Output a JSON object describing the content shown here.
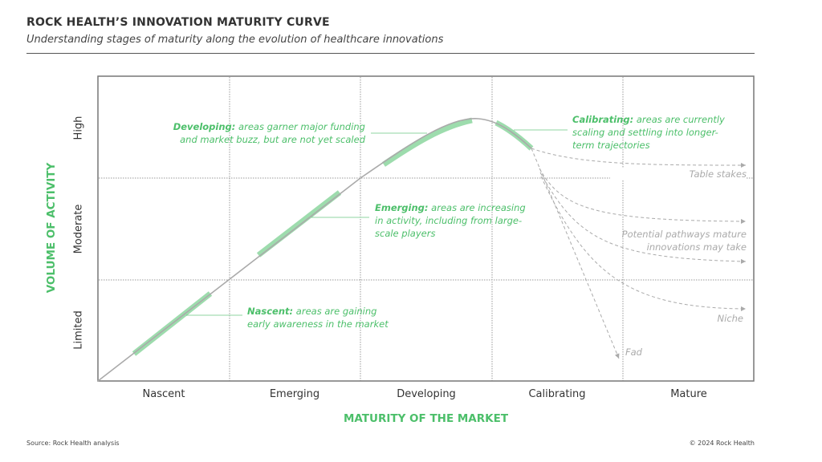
{
  "title": "ROCK HEALTH’S INNOVATION MATURITY CURVE",
  "subtitle": "Understanding stages of maturity along the evolution of healthcare innovations",
  "x_axis": {
    "label": "MATURITY OF THE MARKET",
    "ticks": [
      "Nascent",
      "Emerging",
      "Developing",
      "Calibrating",
      "Mature"
    ]
  },
  "y_axis": {
    "label": "VOLUME OF ACTIVITY",
    "ticks": [
      "Limited",
      "Moderate",
      "High"
    ]
  },
  "annotations": {
    "developing": {
      "term": "Developing:",
      "line1": " areas garner major funding",
      "line2": "and market buzz, but are not yet scaled"
    },
    "emerging": {
      "term": "Emerging:",
      "line1": " areas are increasing",
      "line2": "in activity, including from large-",
      "line3": "scale players"
    },
    "nascent": {
      "term": "Nascent:",
      "line1": " areas are gaining",
      "line2": "early awareness in the market"
    },
    "calibrating": {
      "term": "Calibrating:",
      "line1": " areas are currently",
      "line2": "scaling and settling into longer-",
      "line3": "term trajectories"
    }
  },
  "pathways": {
    "table_stakes": "Table stakes",
    "potential1": "Potential pathways mature",
    "potential2": "innovations may take",
    "niche": "Niche",
    "fad": "Fad"
  },
  "colors": {
    "accent": "#4cbf6a",
    "curve": "#aaaaaa",
    "grid": "#888888"
  },
  "footer": {
    "source": "Source: Rock Health analysis",
    "copyright": "© 2024 Rock Health"
  }
}
